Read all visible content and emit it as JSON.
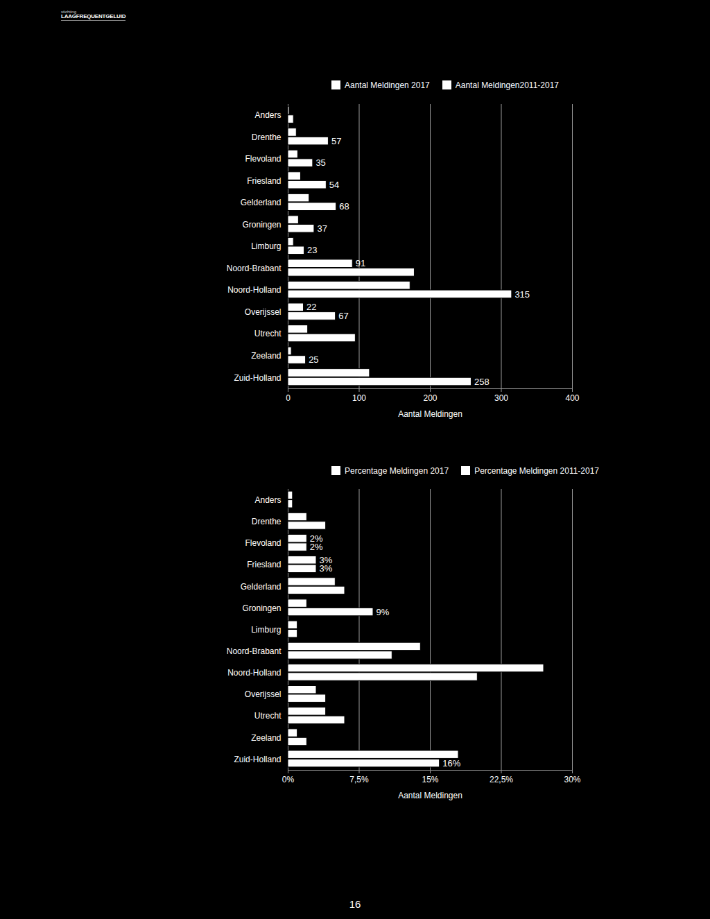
{
  "header": {
    "brand_small": "stichting",
    "brand": "LAAGFREQUENTGELUID"
  },
  "page_number": "16",
  "chart_data": [
    {
      "type": "bar",
      "orientation": "horizontal",
      "grid": true,
      "data_labels": true,
      "categories": [
        "Anders",
        "Drenthe",
        "Flevoland",
        "Friesland",
        "Gelderland",
        "Groningen",
        "Limburg",
        "Noord-Brabant",
        "Noord-Holland",
        "Overijssel",
        "Utrecht",
        "Zeeland",
        "Zuid-Holland"
      ],
      "xlabel": "Aantal Meldingen",
      "xlim": [
        0,
        400
      ],
      "xticks": [
        0,
        100,
        200,
        300,
        400
      ],
      "series": [
        {
          "name": "Aantal Meldingen 2017",
          "color": "#ffffff",
          "values": [
            2,
            12,
            14,
            18,
            30,
            15,
            8,
            91,
            172,
            22,
            28,
            5,
            115
          ],
          "value_labels": [
            null,
            null,
            null,
            null,
            null,
            null,
            null,
            "91",
            null,
            "22",
            null,
            null,
            null
          ]
        },
        {
          "name": "Aantal Meldingen2011-2017",
          "color": "#ffffff",
          "values": [
            8,
            57,
            35,
            54,
            68,
            37,
            23,
            178,
            315,
            67,
            95,
            25,
            258
          ],
          "value_labels": [
            null,
            "57",
            "35",
            "54",
            "68",
            "37",
            "23",
            null,
            "315",
            "67",
            null,
            "25",
            "258"
          ]
        }
      ]
    },
    {
      "type": "bar",
      "orientation": "horizontal",
      "grid": true,
      "data_labels": true,
      "categories": [
        "Anders",
        "Drenthe",
        "Flevoland",
        "Friesland",
        "Gelderland",
        "Groningen",
        "Limburg",
        "Noord-Brabant",
        "Noord-Holland",
        "Overijssel",
        "Utrecht",
        "Zeeland",
        "Zuid-Holland"
      ],
      "xlabel": "Aantal Meldingen",
      "xlim": [
        0,
        30
      ],
      "xticks": [
        {
          "value": 0,
          "label": "0%"
        },
        {
          "value": 7.5,
          "label": "7,5%"
        },
        {
          "value": 15,
          "label": "15%"
        },
        {
          "value": 22.5,
          "label": "22,5%"
        },
        {
          "value": 30,
          "label": "30%"
        }
      ],
      "series": [
        {
          "name": "Percentage Meldingen 2017",
          "color": "#ffffff",
          "values": [
            0.5,
            2,
            2,
            3,
            5,
            2,
            1,
            14,
            27,
            3,
            4,
            1,
            18
          ],
          "value_labels": [
            null,
            null,
            "2%",
            "3%",
            null,
            null,
            null,
            null,
            null,
            null,
            null,
            null,
            null
          ]
        },
        {
          "name": "Percentage Meldingen 2011-2017",
          "color": "#ffffff",
          "values": [
            0.5,
            4,
            2,
            3,
            6,
            9,
            1,
            11,
            20,
            4,
            6,
            2,
            16
          ],
          "value_labels": [
            null,
            null,
            "2%",
            "3%",
            null,
            "9%",
            null,
            null,
            null,
            null,
            null,
            null,
            "16%"
          ]
        }
      ]
    }
  ]
}
